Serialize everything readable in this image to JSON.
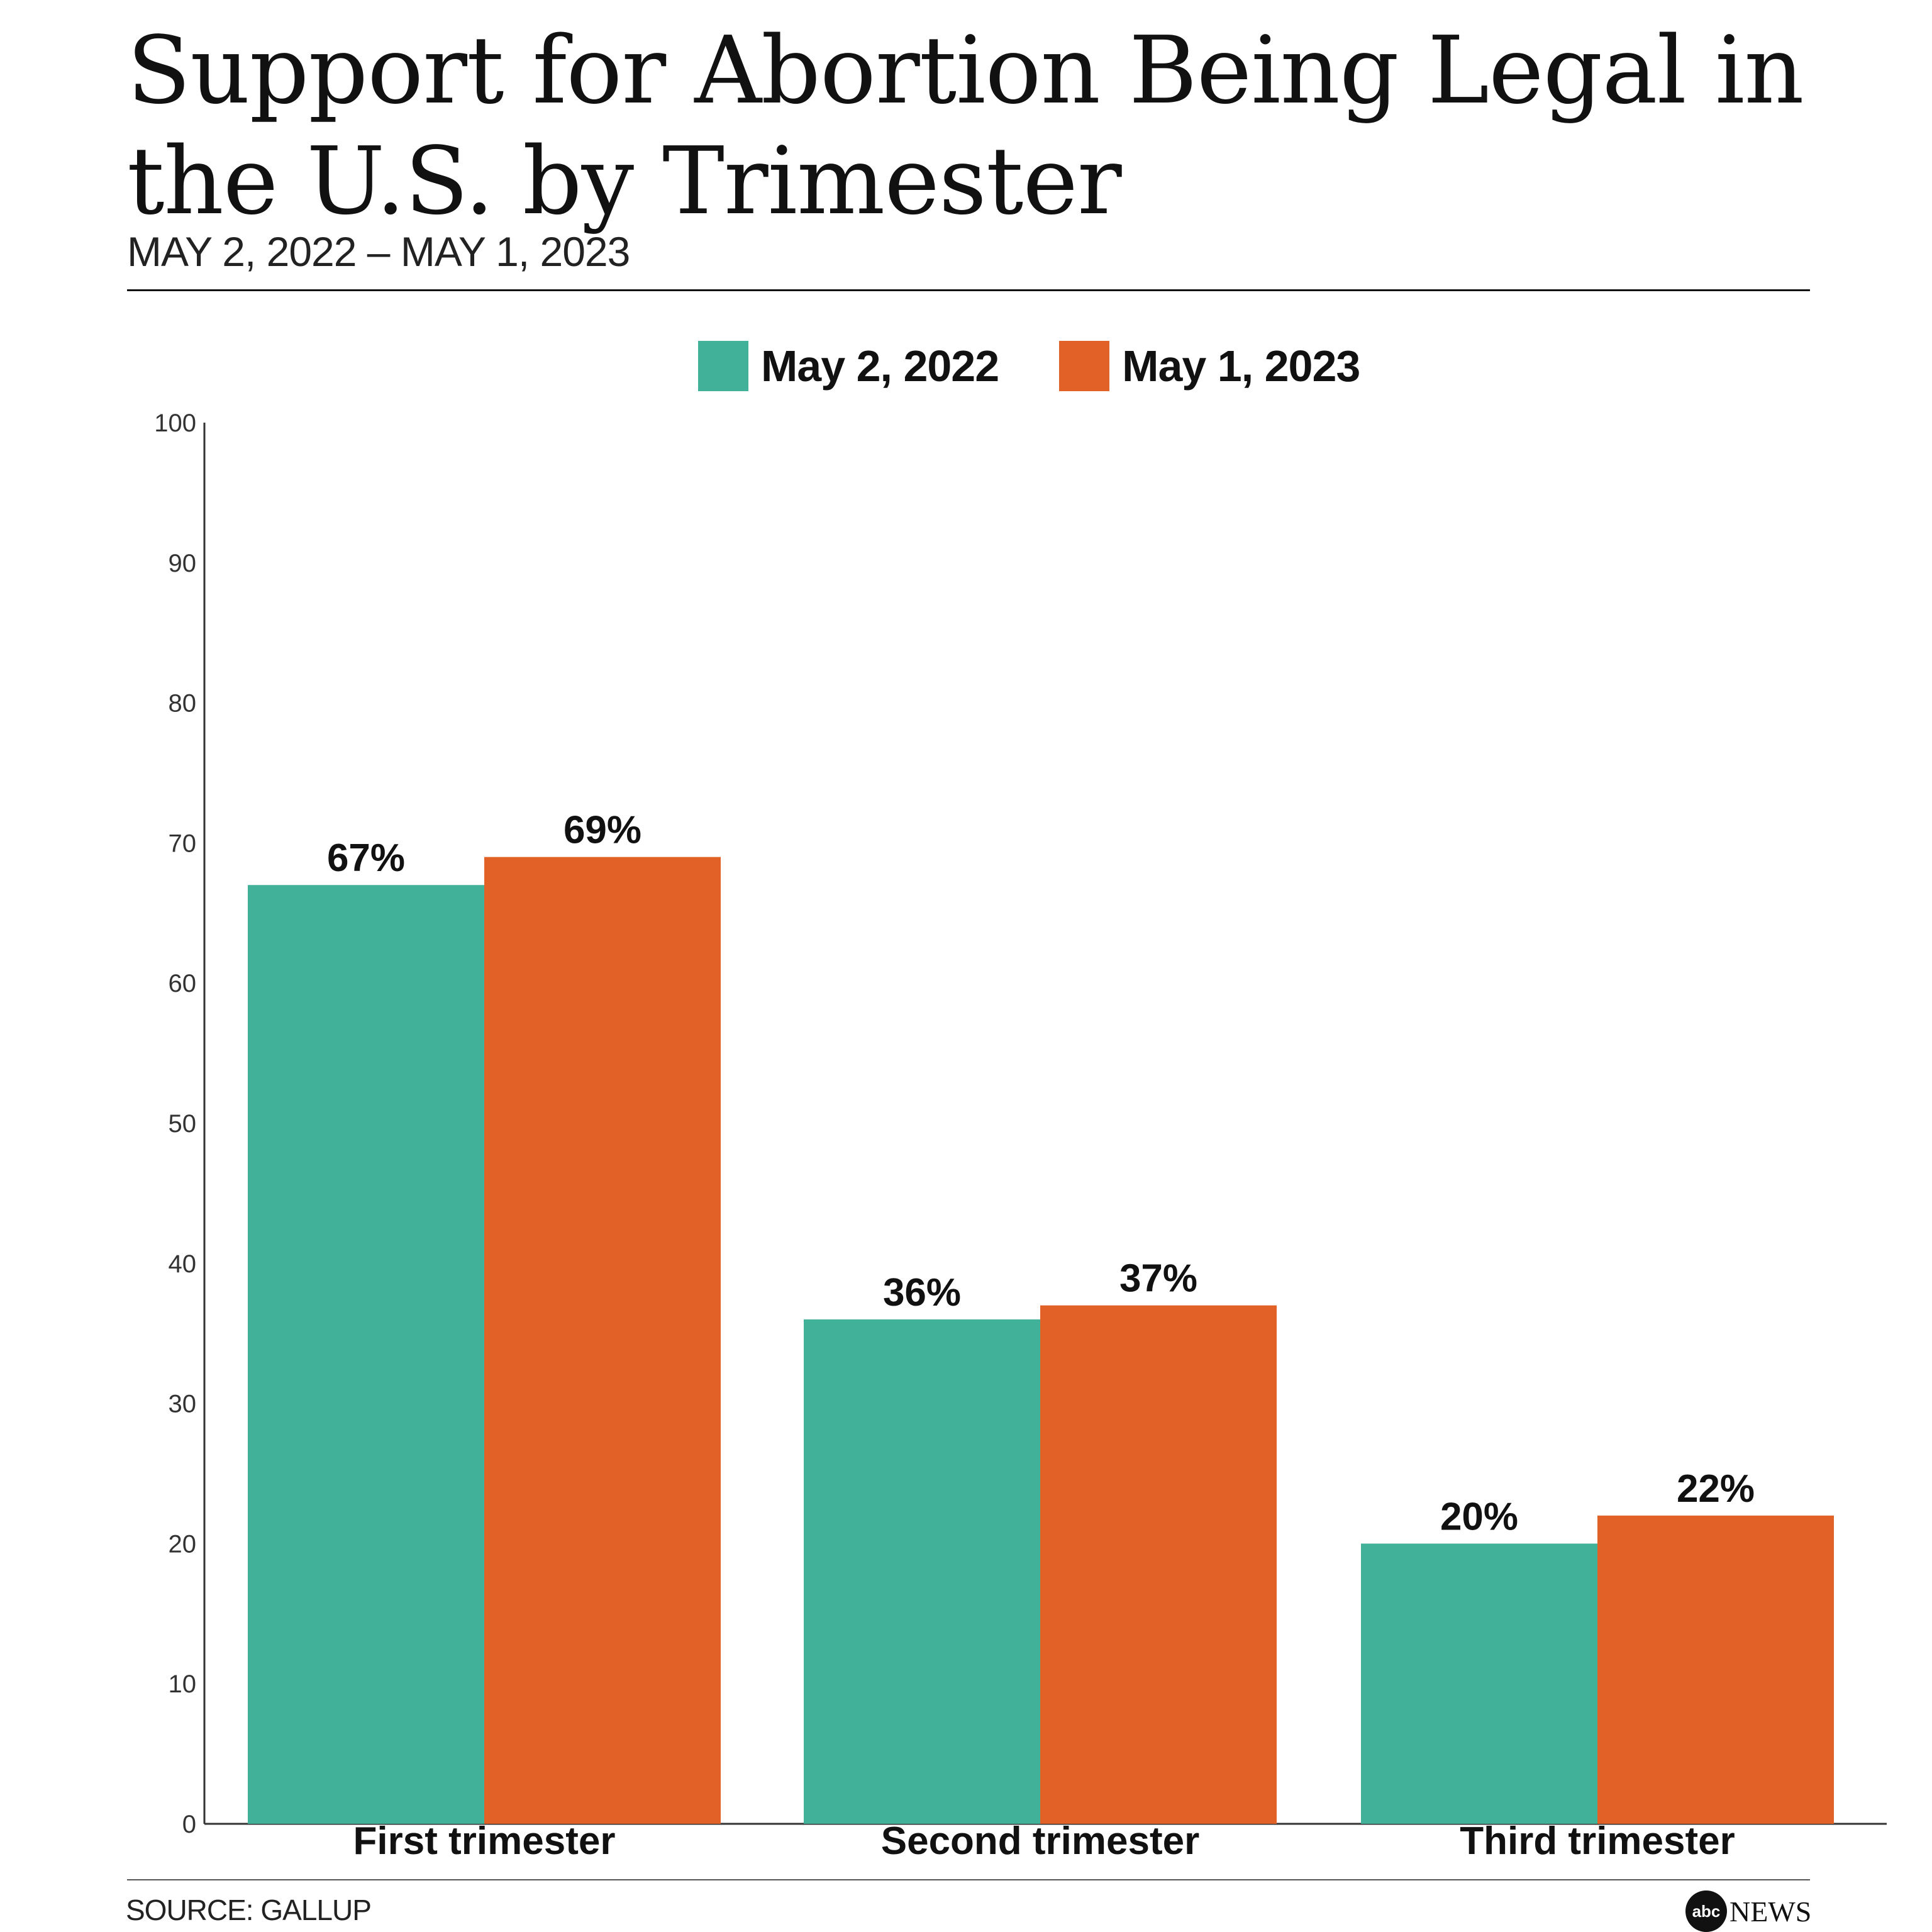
{
  "header": {
    "title": "Support for Abortion Being Legal in the U.S. by Trimester",
    "subtitle": "MAY 2, 2022 – MAY 1, 2023"
  },
  "footer": {
    "source": "SOURCE: GALLUP",
    "logo_mark": "abc",
    "logo_word": "NEWS"
  },
  "colors": {
    "series_2022": "#41b199",
    "series_2023": "#e26127"
  },
  "chart_data": {
    "type": "bar",
    "title": "Support for Abortion Being Legal in the U.S. by Trimester",
    "subtitle": "MAY 2, 2022 – MAY 1, 2023",
    "categories": [
      "First trimester",
      "Second trimester",
      "Third trimester"
    ],
    "series": [
      {
        "name": "May 2, 2022",
        "values": [
          67,
          36,
          20
        ],
        "labels": [
          "67%",
          "36%",
          "20%"
        ],
        "color": "#41b199"
      },
      {
        "name": "May 1, 2023",
        "values": [
          69,
          37,
          22
        ],
        "labels": [
          "69%",
          "37%",
          "22%"
        ],
        "color": "#e26127"
      }
    ],
    "ylim": [
      0,
      100
    ],
    "yticks": [
      0,
      10,
      20,
      30,
      40,
      50,
      60,
      70,
      80,
      90,
      100
    ],
    "xlabel": "",
    "ylabel": "",
    "grid": false,
    "legend": "top-center"
  }
}
